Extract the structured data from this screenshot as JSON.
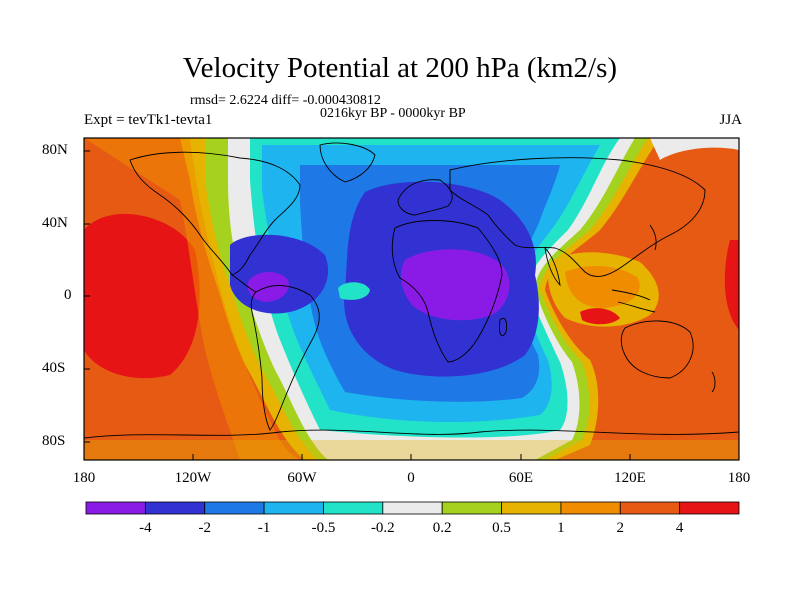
{
  "title": "Velocity Potential at 200 hPa (km2/s)",
  "stats": "rmsd= 2.6224 diff= -0.000430812",
  "period": "0216kyr BP - 0000kyr BP",
  "experiment": "Expt = tevTk1-tevta1",
  "season": "JJA",
  "lat_labels": [
    "80N",
    "40N",
    "0",
    "40S",
    "80S"
  ],
  "lon_labels": [
    "180",
    "120W",
    "60W",
    "0",
    "60E",
    "120E",
    "180"
  ],
  "colorbar": {
    "colors": [
      "#8a1be6",
      "#3232d2",
      "#1e78e6",
      "#1eb4f0",
      "#22e3c8",
      "#ebebeb",
      "#a5d21e",
      "#e6b400",
      "#f08c00",
      "#e65a14",
      "#e61414"
    ],
    "labels": [
      "-4",
      "-2",
      "-1",
      "-0.5",
      "-0.2",
      "0.2",
      "0.5",
      "1",
      "2",
      "4"
    ]
  }
}
